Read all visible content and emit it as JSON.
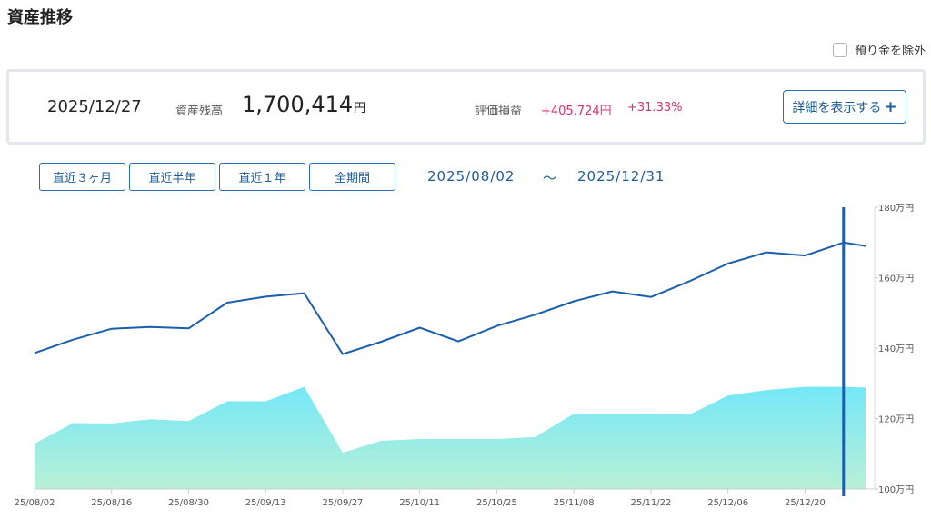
{
  "page_title": "資産推移",
  "exclude_deposit": {
    "label": "預り金を除外",
    "checked": false
  },
  "summary": {
    "date": "2025/12/27",
    "balance_label": "資産残高",
    "balance_value": "1,700,414",
    "balance_unit": "円",
    "pl_label": "評価損益",
    "pl_amount": "+405,724円",
    "pl_percent": "+31.33%",
    "detail_button": "詳細を表示する",
    "detail_button_icon": "plus-icon"
  },
  "range_buttons": [
    "直近３ヶ月",
    "直近半年",
    "直近１年",
    "全期間"
  ],
  "period": {
    "from": "2025/08/02",
    "separator": "～",
    "to": "2025/12/31"
  },
  "colors": {
    "line": "#1a5fad",
    "area_top": "#74e7f7",
    "area_bottom": "#b9f0d6",
    "accent": "#1d5b99",
    "positive": "#d6336c"
  },
  "chart_data": {
    "type": "line",
    "y_unit": "万円",
    "ylim": [
      100,
      180
    ],
    "y_ticks": [
      "100万円",
      "120万円",
      "140万円",
      "160万円",
      "180万円"
    ],
    "x_tick_labels": [
      "25/08/02",
      "25/08/16",
      "25/08/30",
      "25/09/13",
      "25/09/27",
      "25/10/11",
      "25/10/25",
      "25/11/08",
      "25/11/22",
      "25/12/06",
      "25/12/20"
    ],
    "x": [
      "25/08/02",
      "25/08/09",
      "25/08/16",
      "25/08/23",
      "25/08/30",
      "25/09/06",
      "25/09/13",
      "25/09/20",
      "25/09/27",
      "25/10/04",
      "25/10/11",
      "25/10/18",
      "25/10/25",
      "25/11/01",
      "25/11/08",
      "25/11/15",
      "25/11/22",
      "25/11/29",
      "25/12/06",
      "25/12/13",
      "25/12/20",
      "25/12/27",
      "25/12/31"
    ],
    "series": [
      {
        "kind": "line",
        "values": [
          138.6,
          142.4,
          145.5,
          146.0,
          145.6,
          152.9,
          154.6,
          155.6,
          138.3,
          141.8,
          145.8,
          141.9,
          146.3,
          149.5,
          153.3,
          156.1,
          154.5,
          159.0,
          164.0,
          167.2,
          166.3,
          170.0,
          169.0
        ]
      },
      {
        "kind": "area",
        "values": [
          112.9,
          118.7,
          118.6,
          119.8,
          119.3,
          124.9,
          124.9,
          129.0,
          110.3,
          113.7,
          114.2,
          114.2,
          114.2,
          114.8,
          121.4,
          121.4,
          121.4,
          121.1,
          126.5,
          128.1,
          129.0,
          129.0,
          128.8
        ]
      }
    ],
    "cursor_x": "25/12/27"
  }
}
